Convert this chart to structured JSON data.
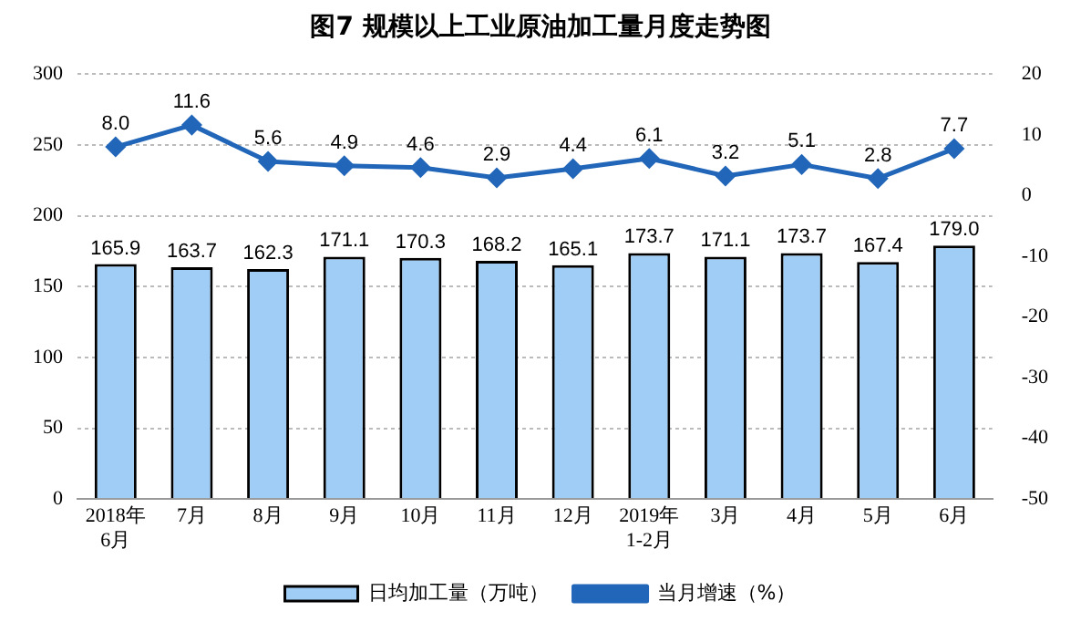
{
  "chart_data": {
    "type": "bar",
    "title": "图7  规模以上工业原油加工量月度走势图",
    "categories": [
      "2018年\n6月",
      "7月",
      "8月",
      "9月",
      "10月",
      "11月",
      "12月",
      "2019年\n1-2月",
      "3月",
      "4月",
      "5月",
      "6月"
    ],
    "series": [
      {
        "name": "日均加工量（万吨）",
        "color": "#9fcdf5",
        "values": [
          165.9,
          163.7,
          162.3,
          171.1,
          170.3,
          168.2,
          165.1,
          173.7,
          171.1,
          173.7,
          167.4,
          179.0
        ],
        "value_labels": [
          "165.9",
          "163.7",
          "162.3",
          "171.1",
          "170.3",
          "168.2",
          "165.1",
          "173.7",
          "171.1",
          "173.7",
          "167.4",
          "179.0"
        ]
      },
      {
        "name": "当月增速（%）",
        "type": "line",
        "axis": "y2",
        "color": "#2166b8",
        "values": [
          8.0,
          11.6,
          5.6,
          4.9,
          4.6,
          2.9,
          4.4,
          6.1,
          3.2,
          5.1,
          2.8,
          7.7
        ],
        "value_labels": [
          "8.0",
          "11.6",
          "5.6",
          "4.9",
          "4.6",
          "2.9",
          "4.4",
          "6.1",
          "3.2",
          "5.1",
          "2.8",
          "7.7"
        ]
      }
    ],
    "ylim": [
      0,
      300
    ],
    "yticks": [
      0,
      50,
      100,
      150,
      200,
      250,
      300
    ],
    "y2lim": [
      -50,
      20
    ],
    "y2ticks": [
      -50,
      -40,
      -30,
      -20,
      -10,
      0,
      10,
      20
    ],
    "grid": "y",
    "legend": "bottom",
    "marker": "diamond"
  }
}
